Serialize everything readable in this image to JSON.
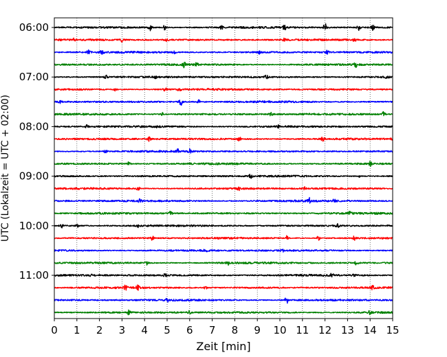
{
  "chart_data": {
    "type": "line",
    "title": "",
    "xlabel": "Zeit  [min]",
    "ylabel": "UTC (Lokalzeit = UTC + 02:00)",
    "xlim": [
      0,
      15
    ],
    "x_ticks": [
      0,
      1,
      2,
      3,
      4,
      5,
      6,
      7,
      8,
      9,
      10,
      11,
      12,
      13,
      14,
      15
    ],
    "y_tick_labels": [
      "06:00",
      "07:00",
      "08:00",
      "09:00",
      "10:00",
      "11:00"
    ],
    "line_interval_minutes": 15,
    "start_time": "06:00",
    "grid": "vertical",
    "line_colors": [
      "#000000",
      "#ff0000",
      "#0000ff",
      "#008000"
    ],
    "series": [
      {
        "start": "06:00",
        "color": "#000000",
        "events": [
          [
            4.25,
            4.5
          ],
          [
            4.9,
            3.5
          ],
          [
            7.4,
            2.8
          ],
          [
            10.2,
            3.2
          ],
          [
            12.0,
            5.5
          ],
          [
            13.5,
            3.5
          ],
          [
            14.1,
            5.0
          ]
        ]
      },
      {
        "start": "06:15",
        "color": "#ff0000",
        "events": [
          [
            0.9,
            2.0
          ],
          [
            3.0,
            2.5
          ],
          [
            5.0,
            1.8
          ],
          [
            10.2,
            2.0
          ],
          [
            13.3,
            2.3
          ]
        ]
      },
      {
        "start": "06:30",
        "color": "#0000ff",
        "events": [
          [
            1.5,
            3.2
          ],
          [
            2.1,
            2.4
          ],
          [
            5.3,
            2.0
          ],
          [
            9.1,
            2.0
          ],
          [
            12.1,
            2.4
          ]
        ]
      },
      {
        "start": "06:45",
        "color": "#008000",
        "events": [
          [
            5.75,
            4.0
          ],
          [
            6.3,
            2.0
          ],
          [
            13.35,
            3.5
          ]
        ]
      },
      {
        "start": "07:00",
        "color": "#000000",
        "events": [
          [
            2.3,
            2.2
          ],
          [
            4.5,
            1.8
          ],
          [
            9.4,
            2.8
          ],
          [
            14.75,
            3.0
          ]
        ]
      },
      {
        "start": "07:15",
        "color": "#ff0000",
        "events": [
          [
            2.7,
            2.0
          ],
          [
            4.9,
            3.0
          ],
          [
            5.55,
            3.8
          ]
        ]
      },
      {
        "start": "07:30",
        "color": "#0000ff",
        "events": [
          [
            0.25,
            3.2
          ],
          [
            5.6,
            5.5
          ],
          [
            6.4,
            2.4
          ]
        ]
      },
      {
        "start": "07:45",
        "color": "#008000",
        "events": [
          [
            4.8,
            2.4
          ],
          [
            9.6,
            2.0
          ],
          [
            14.6,
            3.2
          ]
        ]
      },
      {
        "start": "08:00",
        "color": "#000000",
        "events": [
          [
            1.45,
            2.5
          ],
          [
            4.55,
            2.0
          ],
          [
            9.9,
            2.0
          ]
        ]
      },
      {
        "start": "08:15",
        "color": "#ff0000",
        "events": [
          [
            4.2,
            2.5
          ],
          [
            8.2,
            2.8
          ],
          [
            11.9,
            2.4
          ],
          [
            15.0,
            2.8
          ]
        ]
      },
      {
        "start": "08:30",
        "color": "#0000ff",
        "events": [
          [
            2.3,
            3.2
          ],
          [
            5.5,
            4.0
          ],
          [
            6.0,
            2.6
          ]
        ]
      },
      {
        "start": "08:45",
        "color": "#008000",
        "events": [
          [
            3.3,
            2.6
          ],
          [
            14.0,
            3.2
          ]
        ]
      },
      {
        "start": "09:00",
        "color": "#000000",
        "events": [
          [
            8.7,
            3.0
          ],
          [
            13.5,
            1.8
          ]
        ]
      },
      {
        "start": "09:15",
        "color": "#ff0000",
        "events": [
          [
            3.7,
            2.8
          ],
          [
            8.2,
            2.4
          ],
          [
            11.1,
            1.8
          ]
        ]
      },
      {
        "start": "09:30",
        "color": "#0000ff",
        "events": [
          [
            3.8,
            2.6
          ],
          [
            11.3,
            4.0
          ],
          [
            12.4,
            2.4
          ]
        ]
      },
      {
        "start": "09:45",
        "color": "#008000",
        "events": [
          [
            5.15,
            3.0
          ],
          [
            13.1,
            2.6
          ]
        ]
      },
      {
        "start": "10:00",
        "color": "#000000",
        "events": [
          [
            0.3,
            3.4
          ],
          [
            1.0,
            2.0
          ],
          [
            3.7,
            1.8
          ],
          [
            12.55,
            2.8
          ]
        ]
      },
      {
        "start": "10:15",
        "color": "#ff0000",
        "events": [
          [
            4.35,
            3.0
          ],
          [
            10.3,
            3.0
          ],
          [
            11.7,
            3.0
          ],
          [
            13.3,
            2.6
          ]
        ]
      },
      {
        "start": "10:30",
        "color": "#0000ff",
        "events": [
          [
            6.7,
            2.0
          ],
          [
            10.1,
            1.8
          ]
        ]
      },
      {
        "start": "10:45",
        "color": "#008000",
        "events": [
          [
            4.1,
            2.8
          ],
          [
            7.7,
            2.6
          ],
          [
            13.4,
            3.0
          ]
        ]
      },
      {
        "start": "11:00",
        "color": "#000000",
        "events": [
          [
            1.6,
            1.8
          ],
          [
            4.9,
            1.8
          ],
          [
            12.3,
            2.0
          ],
          [
            13.3,
            2.0
          ]
        ]
      },
      {
        "start": "11:15",
        "color": "#ff0000",
        "events": [
          [
            3.15,
            2.8
          ],
          [
            3.7,
            3.0
          ],
          [
            6.7,
            1.8
          ],
          [
            14.1,
            2.8
          ]
        ]
      },
      {
        "start": "11:30",
        "color": "#0000ff",
        "events": [
          [
            5.0,
            2.2
          ],
          [
            10.3,
            5.0
          ]
        ]
      },
      {
        "start": "11:45",
        "color": "#008000",
        "events": [
          [
            3.3,
            2.6
          ],
          [
            6.0,
            2.0
          ],
          [
            14.0,
            2.8
          ]
        ]
      }
    ]
  }
}
